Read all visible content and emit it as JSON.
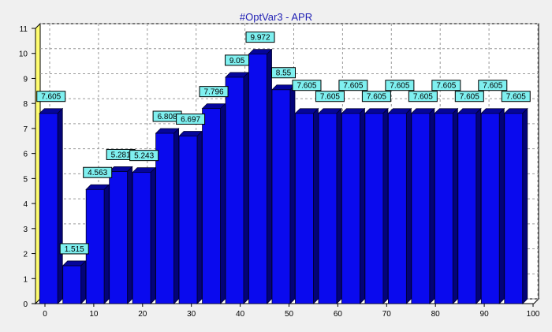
{
  "chart_data": {
    "type": "bar",
    "title": "#OptVar3 - APR",
    "xlabel": "",
    "ylabel": "",
    "x": [
      0,
      5,
      10,
      15,
      20,
      25,
      30,
      35,
      40,
      45,
      50,
      55,
      60,
      65,
      70,
      75,
      80,
      85,
      90,
      95,
      100
    ],
    "values": [
      7.605,
      1.515,
      4.563,
      5.281,
      5.243,
      6.808,
      6.697,
      7.796,
      9.05,
      9.972,
      8.55,
      7.605,
      7.605,
      7.605,
      7.605,
      7.605,
      7.605,
      7.605,
      7.605,
      7.605,
      7.605
    ],
    "data_labels": [
      "7.605",
      "1.515",
      "4.563",
      "5.281",
      "5.243",
      "6.808",
      "6.697",
      "7.796",
      "9.05",
      "9.972",
      "8.55",
      "7.605",
      "7.605",
      "7.605",
      "7.605",
      "7.605",
      "7.605",
      "7.605",
      "7.605",
      "7.605",
      "7.605"
    ],
    "x_ticks": [
      "0",
      "10",
      "20",
      "30",
      "40",
      "50",
      "60",
      "70",
      "80",
      "90",
      "100"
    ],
    "y_ticks": [
      "0",
      "1",
      "2",
      "3",
      "4",
      "5",
      "6",
      "7",
      "8",
      "9",
      "10",
      "11"
    ],
    "ylim": [
      0,
      11
    ],
    "grid": true,
    "colors": {
      "bar_front": "#0a0aee",
      "bar_top": "#05059a",
      "bar_side": "#030378",
      "label_bg": "#7ff0f0",
      "wall": "#fffd70",
      "plot_bg": "#ffffff",
      "grid": "#9a9a9a",
      "title": "#1f1fb4"
    }
  }
}
